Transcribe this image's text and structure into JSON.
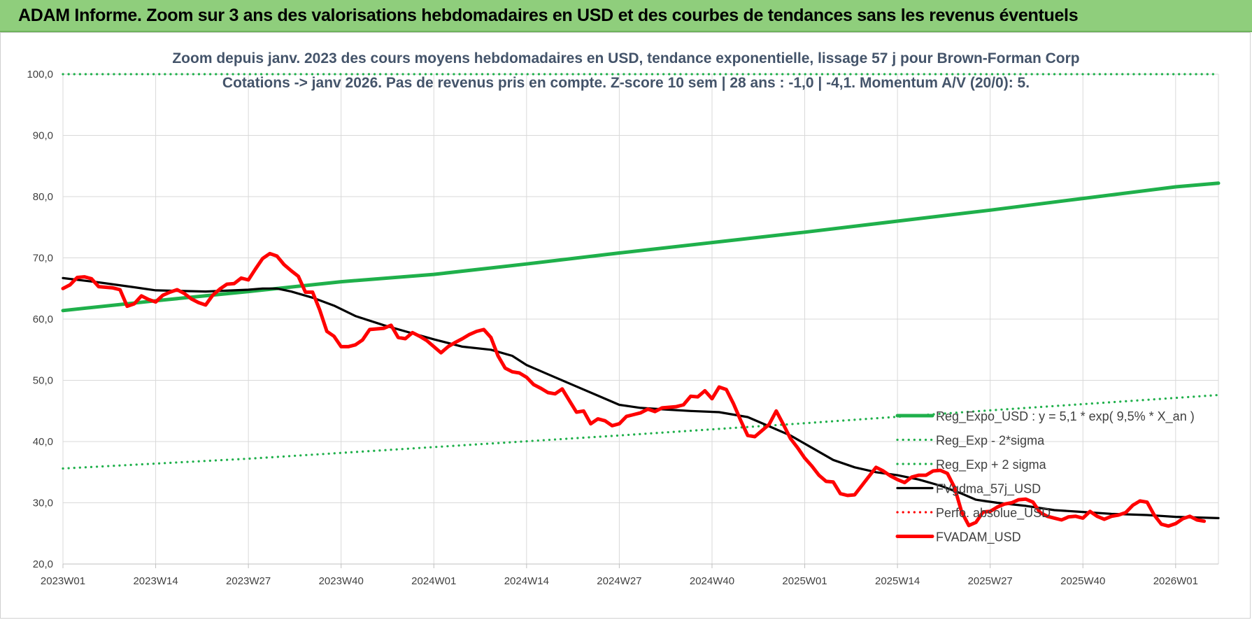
{
  "header": {
    "title": "ADAM Informe. Zoom sur 3 ans des valorisations hebdomadaires en USD et des courbes de tendances sans les revenus éventuels"
  },
  "chart_data": {
    "type": "line",
    "title_line1": "Zoom depuis janv. 2023 des cours moyens hebdomadaires en USD, tendance exponentielle, lissage 57 j pour Brown-Forman Corp",
    "title_line2": "Cotations -> janv 2026. Pas de revenus pris en compte. Z-score 10 sem | 28 ans : -1,0 | -4,1. Momentum A/V (20/0): 5.",
    "ylim": [
      20,
      100
    ],
    "yticks": [
      "20,0",
      "30,0",
      "40,0",
      "50,0",
      "60,0",
      "70,0",
      "80,0",
      "90,0",
      "100,0"
    ],
    "xlim": [
      0,
      162
    ],
    "xticks": [
      {
        "label": "2023W01",
        "x": 0
      },
      {
        "label": "2023W14",
        "x": 13
      },
      {
        "label": "2023W27",
        "x": 26
      },
      {
        "label": "2023W40",
        "x": 39
      },
      {
        "label": "2024W01",
        "x": 52
      },
      {
        "label": "2024W14",
        "x": 65
      },
      {
        "label": "2024W27",
        "x": 78
      },
      {
        "label": "2024W40",
        "x": 91
      },
      {
        "label": "2025W01",
        "x": 104
      },
      {
        "label": "2025W14",
        "x": 117
      },
      {
        "label": "2025W27",
        "x": 130
      },
      {
        "label": "2025W40",
        "x": 143
      },
      {
        "label": "2026W01",
        "x": 156
      }
    ],
    "legend": [
      {
        "label": "Reg_Expo_USD : y = 5,1 * exp( 9,5% * X_an )",
        "color": "#1fb04b",
        "style": "thick"
      },
      {
        "label": "Reg_Exp - 2*sigma",
        "color": "#1fb04b",
        "style": "dotted"
      },
      {
        "label": "Reg_Exp + 2 sigma",
        "color": "#1fb04b",
        "style": "dotted"
      },
      {
        "label": "FVgdma_57j_USD",
        "color": "#000000",
        "style": "solid"
      },
      {
        "label": "Perfo. absolue_USD",
        "color": "#ff0000",
        "style": "dotted"
      },
      {
        "label": "FVADAM_USD",
        "color": "#ff0000",
        "style": "thick"
      }
    ],
    "series": [
      {
        "name": "Reg_Expo_USD",
        "color": "#1fb04b",
        "style": "thick",
        "points": [
          [
            0,
            61.4
          ],
          [
            13,
            63.0
          ],
          [
            26,
            64.5
          ],
          [
            39,
            66.1
          ],
          [
            52,
            67.3
          ],
          [
            65,
            69.0
          ],
          [
            78,
            70.8
          ],
          [
            91,
            72.5
          ],
          [
            104,
            74.2
          ],
          [
            117,
            76.0
          ],
          [
            130,
            77.8
          ],
          [
            143,
            79.7
          ],
          [
            156,
            81.6
          ],
          [
            162,
            82.2
          ]
        ]
      },
      {
        "name": "Reg_Exp - 2*sigma",
        "color": "#1fb04b",
        "style": "dotted",
        "points": [
          [
            0,
            35.6
          ],
          [
            26,
            37.2
          ],
          [
            52,
            39.1
          ],
          [
            78,
            41.0
          ],
          [
            104,
            43.0
          ],
          [
            130,
            45.1
          ],
          [
            162,
            47.6
          ]
        ]
      },
      {
        "name": "Reg_Exp + 2 sigma",
        "color": "#1fb04b",
        "style": "dotted",
        "points": [
          [
            0,
            100
          ],
          [
            18,
            100
          ],
          [
            142,
            100
          ],
          [
            162,
            100
          ]
        ]
      },
      {
        "name": "FVgdma_57j_USD",
        "color": "#000000",
        "style": "solid",
        "points": [
          [
            0,
            66.7
          ],
          [
            5,
            66.0
          ],
          [
            10,
            65.2
          ],
          [
            13,
            64.7
          ],
          [
            20,
            64.5
          ],
          [
            26,
            64.8
          ],
          [
            28,
            65.0
          ],
          [
            30,
            65.0
          ],
          [
            32,
            64.5
          ],
          [
            35,
            63.5
          ],
          [
            38,
            62.2
          ],
          [
            41,
            60.5
          ],
          [
            45,
            59.0
          ],
          [
            48,
            58.0
          ],
          [
            52,
            56.7
          ],
          [
            56,
            55.5
          ],
          [
            60,
            55.0
          ],
          [
            63,
            54.0
          ],
          [
            65,
            52.5
          ],
          [
            68,
            51.0
          ],
          [
            72,
            49.0
          ],
          [
            75,
            47.5
          ],
          [
            78,
            46.0
          ],
          [
            81,
            45.5
          ],
          [
            85,
            45.2
          ],
          [
            88,
            45.0
          ],
          [
            92,
            44.8
          ],
          [
            96,
            44.0
          ],
          [
            99,
            42.5
          ],
          [
            102,
            41.0
          ],
          [
            105,
            39.0
          ],
          [
            108,
            37.0
          ],
          [
            111,
            35.8
          ],
          [
            114,
            35.0
          ],
          [
            117,
            34.5
          ],
          [
            120,
            33.8
          ],
          [
            123,
            32.8
          ],
          [
            126,
            31.5
          ],
          [
            128,
            30.5
          ],
          [
            131,
            30.0
          ],
          [
            135,
            29.5
          ],
          [
            139,
            28.8
          ],
          [
            143,
            28.5
          ],
          [
            147,
            28.2
          ],
          [
            152,
            28.0
          ],
          [
            156,
            27.7
          ],
          [
            162,
            27.5
          ]
        ]
      },
      {
        "name": "Perfo. absolue_USD",
        "color": "#ff0000",
        "style": "dotted",
        "points": []
      },
      {
        "name": "FVADAM_USD",
        "color": "#ff0000",
        "style": "thick",
        "points": [
          [
            0,
            65.0
          ],
          [
            1,
            65.6
          ],
          [
            2,
            66.8
          ],
          [
            3,
            66.9
          ],
          [
            4,
            66.6
          ],
          [
            5,
            65.3
          ],
          [
            6,
            65.2
          ],
          [
            7,
            65.1
          ],
          [
            8,
            64.8
          ],
          [
            9,
            62.1
          ],
          [
            10,
            62.5
          ],
          [
            11,
            63.8
          ],
          [
            12,
            63.2
          ],
          [
            13,
            62.8
          ],
          [
            14,
            63.9
          ],
          [
            15,
            64.4
          ],
          [
            16,
            64.8
          ],
          [
            17,
            64.2
          ],
          [
            18,
            63.3
          ],
          [
            19,
            62.7
          ],
          [
            20,
            62.3
          ],
          [
            21,
            63.9
          ],
          [
            22,
            64.9
          ],
          [
            23,
            65.7
          ],
          [
            24,
            65.8
          ],
          [
            25,
            66.7
          ],
          [
            26,
            66.4
          ],
          [
            27,
            68.2
          ],
          [
            28,
            69.9
          ],
          [
            29,
            70.7
          ],
          [
            30,
            70.3
          ],
          [
            31,
            68.9
          ],
          [
            32,
            67.9
          ],
          [
            33,
            67.0
          ],
          [
            34,
            64.4
          ],
          [
            35,
            64.4
          ],
          [
            36,
            61.5
          ],
          [
            37,
            58.0
          ],
          [
            38,
            57.2
          ],
          [
            39,
            55.5
          ],
          [
            40,
            55.5
          ],
          [
            41,
            55.8
          ],
          [
            42,
            56.6
          ],
          [
            43,
            58.3
          ],
          [
            44,
            58.4
          ],
          [
            45,
            58.5
          ],
          [
            46,
            59.0
          ],
          [
            47,
            57.0
          ],
          [
            48,
            56.8
          ],
          [
            49,
            57.8
          ],
          [
            50,
            57.2
          ],
          [
            51,
            56.5
          ],
          [
            52,
            55.5
          ],
          [
            53,
            54.5
          ],
          [
            54,
            55.5
          ],
          [
            55,
            56.2
          ],
          [
            56,
            56.8
          ],
          [
            57,
            57.5
          ],
          [
            58,
            58.0
          ],
          [
            59,
            58.3
          ],
          [
            60,
            57.0
          ],
          [
            61,
            54.0
          ],
          [
            62,
            52.0
          ],
          [
            63,
            51.4
          ],
          [
            64,
            51.2
          ],
          [
            65,
            50.5
          ],
          [
            66,
            49.3
          ],
          [
            67,
            48.7
          ],
          [
            68,
            48.0
          ],
          [
            69,
            47.8
          ],
          [
            70,
            48.6
          ],
          [
            71,
            46.7
          ],
          [
            72,
            44.8
          ],
          [
            73,
            45.0
          ],
          [
            74,
            42.9
          ],
          [
            75,
            43.7
          ],
          [
            76,
            43.4
          ],
          [
            77,
            42.6
          ],
          [
            78,
            42.9
          ],
          [
            79,
            44.1
          ],
          [
            80,
            44.4
          ],
          [
            81,
            44.7
          ],
          [
            82,
            45.3
          ],
          [
            83,
            44.9
          ],
          [
            84,
            45.5
          ],
          [
            85,
            45.6
          ],
          [
            86,
            45.7
          ],
          [
            87,
            46.0
          ],
          [
            88,
            47.4
          ],
          [
            89,
            47.3
          ],
          [
            90,
            48.3
          ],
          [
            91,
            47.0
          ],
          [
            92,
            48.9
          ],
          [
            93,
            48.5
          ],
          [
            94,
            46.2
          ],
          [
            95,
            43.5
          ],
          [
            96,
            41.0
          ],
          [
            97,
            40.8
          ],
          [
            98,
            41.8
          ],
          [
            99,
            42.8
          ],
          [
            100,
            45.0
          ],
          [
            101,
            42.8
          ],
          [
            102,
            40.5
          ],
          [
            103,
            39.0
          ],
          [
            104,
            37.3
          ],
          [
            105,
            36.0
          ],
          [
            106,
            34.5
          ],
          [
            107,
            33.5
          ],
          [
            108,
            33.4
          ],
          [
            109,
            31.5
          ],
          [
            110,
            31.2
          ],
          [
            111,
            31.3
          ],
          [
            112,
            32.8
          ],
          [
            113,
            34.3
          ],
          [
            114,
            35.8
          ],
          [
            115,
            35.2
          ],
          [
            116,
            34.4
          ],
          [
            117,
            33.8
          ],
          [
            118,
            33.3
          ],
          [
            119,
            34.2
          ],
          [
            120,
            34.5
          ],
          [
            121,
            34.5
          ],
          [
            122,
            35.2
          ],
          [
            123,
            35.3
          ],
          [
            124,
            34.8
          ],
          [
            125,
            32.5
          ],
          [
            126,
            28.5
          ],
          [
            127,
            26.3
          ],
          [
            128,
            26.8
          ],
          [
            129,
            28.5
          ],
          [
            130,
            28.6
          ],
          [
            131,
            29.3
          ],
          [
            132,
            29.8
          ],
          [
            133,
            30.0
          ],
          [
            134,
            30.5
          ],
          [
            135,
            30.6
          ],
          [
            136,
            30.1
          ],
          [
            137,
            28.4
          ],
          [
            138,
            27.8
          ],
          [
            139,
            27.5
          ],
          [
            140,
            27.2
          ],
          [
            141,
            27.7
          ],
          [
            142,
            27.8
          ],
          [
            143,
            27.5
          ],
          [
            144,
            28.6
          ],
          [
            145,
            27.8
          ],
          [
            146,
            27.3
          ],
          [
            147,
            27.8
          ],
          [
            148,
            28.0
          ],
          [
            149,
            28.4
          ],
          [
            150,
            29.6
          ],
          [
            151,
            30.3
          ],
          [
            152,
            30.1
          ],
          [
            153,
            28.0
          ],
          [
            154,
            26.5
          ],
          [
            155,
            26.2
          ],
          [
            156,
            26.6
          ],
          [
            157,
            27.4
          ],
          [
            158,
            27.8
          ],
          [
            159,
            27.2
          ],
          [
            160,
            27.0
          ]
        ]
      }
    ]
  }
}
